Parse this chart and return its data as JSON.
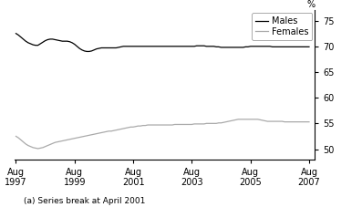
{
  "title": "",
  "footnote": "(a) Series break at April 2001",
  "legend_labels": [
    "Males",
    "Females"
  ],
  "line_colors": [
    "#000000",
    "#aaaaaa"
  ],
  "ylim": [
    48,
    77
  ],
  "yticks": [
    50,
    55,
    60,
    65,
    70,
    75
  ],
  "ylabel": "%",
  "xtick_years": [
    1997,
    1999,
    2001,
    2003,
    2005,
    2007
  ],
  "xtick_labels": [
    "Aug\n1997",
    "Aug\n1999",
    "Aug\n2001",
    "Aug\n2003",
    "Aug\n2005",
    "Aug\n2007"
  ],
  "males_data": [
    72.5,
    72.2,
    71.8,
    71.4,
    71.0,
    70.7,
    70.5,
    70.3,
    70.2,
    70.2,
    70.5,
    70.8,
    71.1,
    71.3,
    71.4,
    71.4,
    71.3,
    71.2,
    71.1,
    71.0,
    71.0,
    71.0,
    70.9,
    70.7,
    70.4,
    70.0,
    69.6,
    69.3,
    69.1,
    69.0,
    69.0,
    69.1,
    69.3,
    69.5,
    69.6,
    69.7,
    69.7,
    69.7,
    69.7,
    69.7,
    69.7,
    69.7,
    69.8,
    69.9,
    70.0,
    70.0,
    70.0,
    70.0,
    70.0,
    70.0,
    70.0,
    70.0,
    70.0,
    70.0,
    70.0,
    70.0,
    70.0,
    70.0,
    70.0,
    70.0,
    70.0,
    70.0,
    70.0,
    70.0,
    70.0,
    70.0,
    70.0,
    70.0,
    70.0,
    70.0,
    70.0,
    70.0,
    70.0,
    70.0,
    70.1,
    70.1,
    70.1,
    70.1,
    70.0,
    70.0,
    70.0,
    70.0,
    69.9,
    69.9,
    69.8,
    69.8,
    69.8,
    69.8,
    69.8,
    69.8,
    69.8,
    69.8,
    69.8,
    69.8,
    69.9,
    69.9,
    70.0,
    70.0,
    70.0,
    70.0,
    70.0,
    70.0,
    70.0,
    70.0,
    70.0,
    69.9,
    69.9,
    69.9,
    69.9,
    69.9,
    69.9,
    69.9,
    69.9,
    69.9,
    69.9,
    69.9,
    69.9,
    69.9,
    69.9,
    69.9,
    69.9
  ],
  "females_data": [
    52.5,
    52.2,
    51.8,
    51.4,
    51.0,
    50.7,
    50.5,
    50.3,
    50.2,
    50.1,
    50.2,
    50.3,
    50.5,
    50.7,
    50.9,
    51.1,
    51.3,
    51.4,
    51.5,
    51.6,
    51.7,
    51.8,
    51.9,
    52.0,
    52.1,
    52.2,
    52.3,
    52.4,
    52.5,
    52.6,
    52.7,
    52.8,
    52.9,
    53.0,
    53.1,
    53.2,
    53.3,
    53.4,
    53.5,
    53.5,
    53.6,
    53.7,
    53.8,
    53.9,
    54.0,
    54.1,
    54.2,
    54.3,
    54.3,
    54.4,
    54.5,
    54.5,
    54.6,
    54.6,
    54.7,
    54.7,
    54.7,
    54.7,
    54.7,
    54.7,
    54.7,
    54.7,
    54.7,
    54.7,
    54.7,
    54.8,
    54.8,
    54.8,
    54.8,
    54.8,
    54.8,
    54.8,
    54.8,
    54.9,
    54.9,
    54.9,
    54.9,
    54.9,
    55.0,
    55.0,
    55.0,
    55.0,
    55.0,
    55.1,
    55.1,
    55.2,
    55.3,
    55.4,
    55.5,
    55.6,
    55.7,
    55.8,
    55.8,
    55.8,
    55.8,
    55.8,
    55.8,
    55.8,
    55.8,
    55.8,
    55.7,
    55.6,
    55.5,
    55.4,
    55.4,
    55.4,
    55.4,
    55.4,
    55.4,
    55.4,
    55.3,
    55.3,
    55.3,
    55.3,
    55.3,
    55.3,
    55.3,
    55.3,
    55.3,
    55.3,
    55.3
  ]
}
